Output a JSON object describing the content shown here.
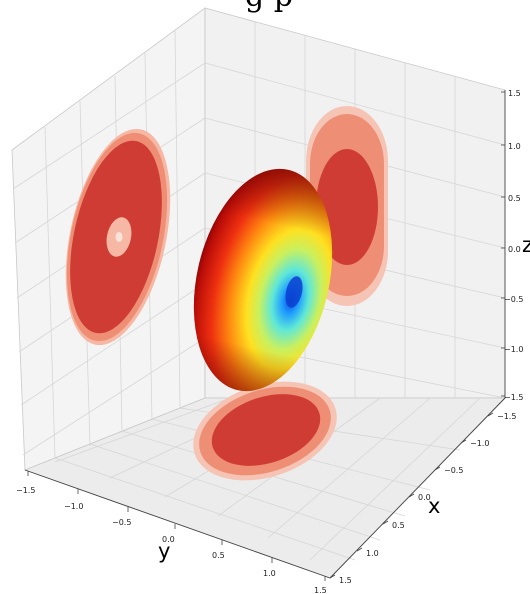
{
  "chart_data": {
    "type": "surface3d",
    "title_fragment": "g        p",
    "xlabel": "x",
    "ylabel": "y",
    "zlabel": "z",
    "x_ticks": [
      "−1.5",
      "−1.0",
      "−0.5",
      "0.0",
      "0.5",
      "1.0",
      "1.5"
    ],
    "y_ticks": [
      "−1.5",
      "−1.0",
      "−0.5",
      "0.0",
      "0.5",
      "1.0",
      "1.5"
    ],
    "z_ticks": [
      "−1.5",
      "−1.0",
      "−0.5",
      "0.0",
      "0.5",
      "1.0",
      "1.5"
    ],
    "xlim": [
      -1.5,
      1.5
    ],
    "ylim": [
      -1.5,
      1.5
    ],
    "zlim": [
      -1.5,
      1.5
    ],
    "grid": true,
    "surface_colormap": "jet",
    "projection_color": "#c0392b"
  }
}
